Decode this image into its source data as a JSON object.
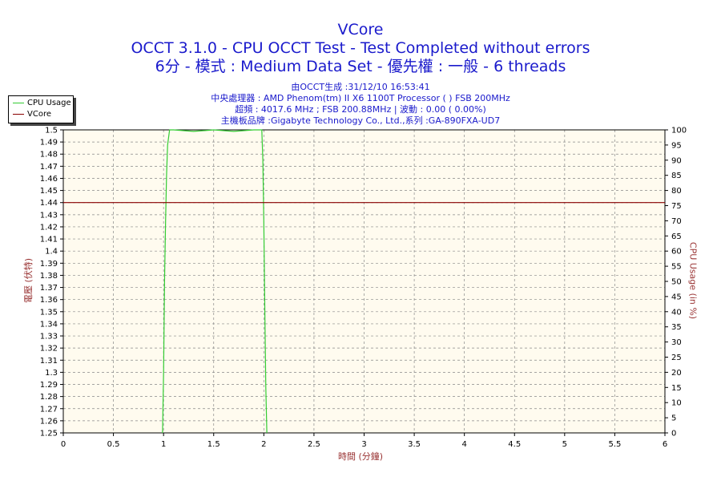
{
  "chart_data": {
    "type": "line",
    "title": "VCore",
    "subtitle": "OCCT 3.1.0 - CPU OCCT Test - Test Completed without errors",
    "subtitle2": "6分 - 模式 : Medium Data Set - 優先權 : 一般 - 6 threads",
    "info_lines": [
      "由OCCT生成 :31/12/10 16:53:41",
      "中央處理器 : AMD Phenom(tm) II X6 1100T Processor (  ) FSB 200MHz",
      "超頻 : 4017.6 MHz ; FSB 200.88MHz | 波動 : 0.00 ( 0.00%)",
      "主機板品牌 :Gigabyte Technology Co., Ltd.,系列 :GA-890FXA-UD7"
    ],
    "xlabel": "時間 (分鐘)",
    "ylabel": "電壓 (伏特)",
    "y2label": "CPU Usage (in %)",
    "xlim": [
      0,
      6
    ],
    "ylim": [
      1.25,
      1.5
    ],
    "y2lim": [
      0,
      100
    ],
    "xticks": [
      "0",
      "0.5",
      "1",
      "1.5",
      "2",
      "2.5",
      "3",
      "3.5",
      "4",
      "4.5",
      "5",
      "5.5",
      "6"
    ],
    "yticks": [
      "1.25",
      "1.26",
      "1.27",
      "1.28",
      "1.29",
      "1.3",
      "1.31",
      "1.32",
      "1.33",
      "1.34",
      "1.35",
      "1.36",
      "1.37",
      "1.38",
      "1.39",
      "1.4",
      "1.41",
      "1.42",
      "1.43",
      "1.44",
      "1.45",
      "1.46",
      "1.47",
      "1.48",
      "1.49",
      "1.5"
    ],
    "y2ticks": [
      "0",
      "5",
      "10",
      "15",
      "20",
      "25",
      "30",
      "35",
      "40",
      "45",
      "50",
      "55",
      "60",
      "65",
      "70",
      "75",
      "80",
      "85",
      "90",
      "95",
      "100"
    ],
    "grid": true,
    "legend_position": "top-left",
    "series": [
      {
        "name": "CPU Usage",
        "axis": "right",
        "color": "#33cc33",
        "x": [
          0.99,
          1.0,
          1.01,
          1.02,
          1.03,
          1.04,
          1.06,
          1.1,
          1.3,
          1.5,
          1.7,
          1.9,
          1.98,
          1.99,
          2.0,
          2.01,
          2.02,
          2.03
        ],
        "y": [
          0,
          20,
          50,
          70,
          85,
          95,
          100,
          100,
          99.5,
          100,
          99.5,
          100,
          100,
          90,
          70,
          40,
          15,
          0
        ]
      },
      {
        "name": "VCore",
        "axis": "left",
        "color": "#880000",
        "x": [
          0,
          6
        ],
        "y": [
          1.44,
          1.44
        ]
      }
    ]
  }
}
